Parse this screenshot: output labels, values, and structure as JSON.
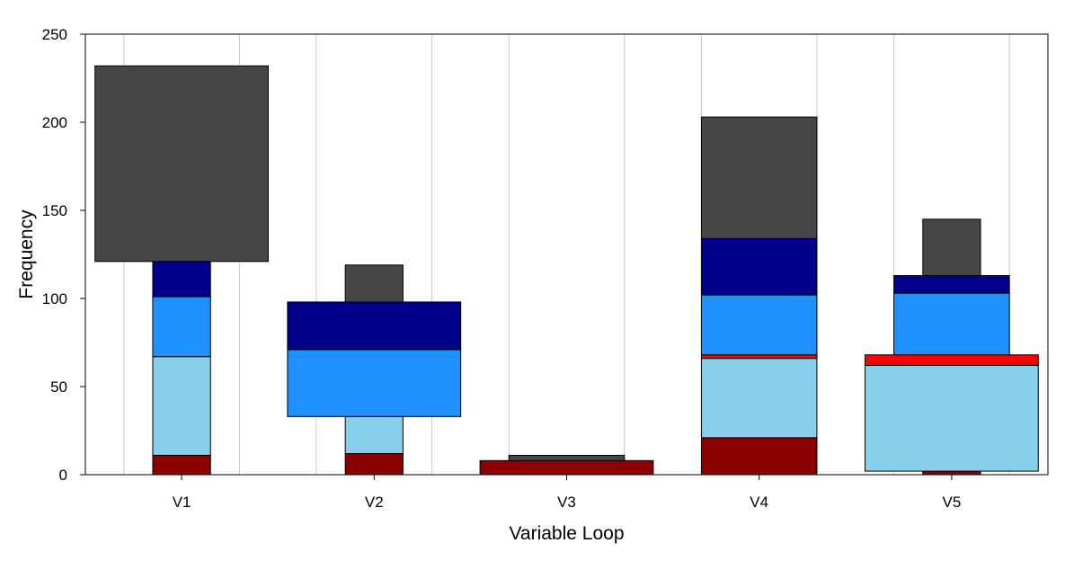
{
  "chart_data": {
    "type": "bar",
    "subtype": "stacked-width-varying",
    "xlabel": "Variable Loop",
    "ylabel": "Frequency",
    "ylim": [
      0,
      250
    ],
    "yticks": [
      0,
      50,
      100,
      150,
      200,
      250
    ],
    "grid": "vertical",
    "categories": [
      "V1",
      "V2",
      "V3",
      "V4",
      "V5"
    ],
    "series": [
      {
        "color": "#8B0000",
        "values": [
          11,
          12,
          8,
          21,
          2
        ]
      },
      {
        "color": "#87CEEB",
        "values": [
          56,
          21,
          0,
          45,
          60
        ]
      },
      {
        "color": "#FF0000",
        "values": [
          0,
          0,
          0,
          2,
          6
        ]
      },
      {
        "color": "#1E90FF",
        "values": [
          34,
          38,
          0,
          34,
          35
        ]
      },
      {
        "color": "#00008B",
        "values": [
          20,
          27,
          0,
          32,
          10
        ]
      },
      {
        "color": "#464646",
        "values": [
          111,
          21,
          3,
          69,
          32
        ]
      }
    ],
    "segment_width": [
      [
        0.5,
        0.5,
        1.5,
        1.0,
        0.5
      ],
      [
        0.5,
        0.5,
        1.0,
        1.0,
        1.5
      ],
      [
        1.0,
        1.0,
        1.0,
        1.0,
        1.5
      ],
      [
        0.5,
        1.5,
        1.0,
        1.0,
        1.0
      ],
      [
        0.5,
        1.5,
        1.0,
        1.0,
        1.0
      ],
      [
        1.5,
        0.5,
        1.0,
        1.0,
        0.5
      ]
    ]
  }
}
